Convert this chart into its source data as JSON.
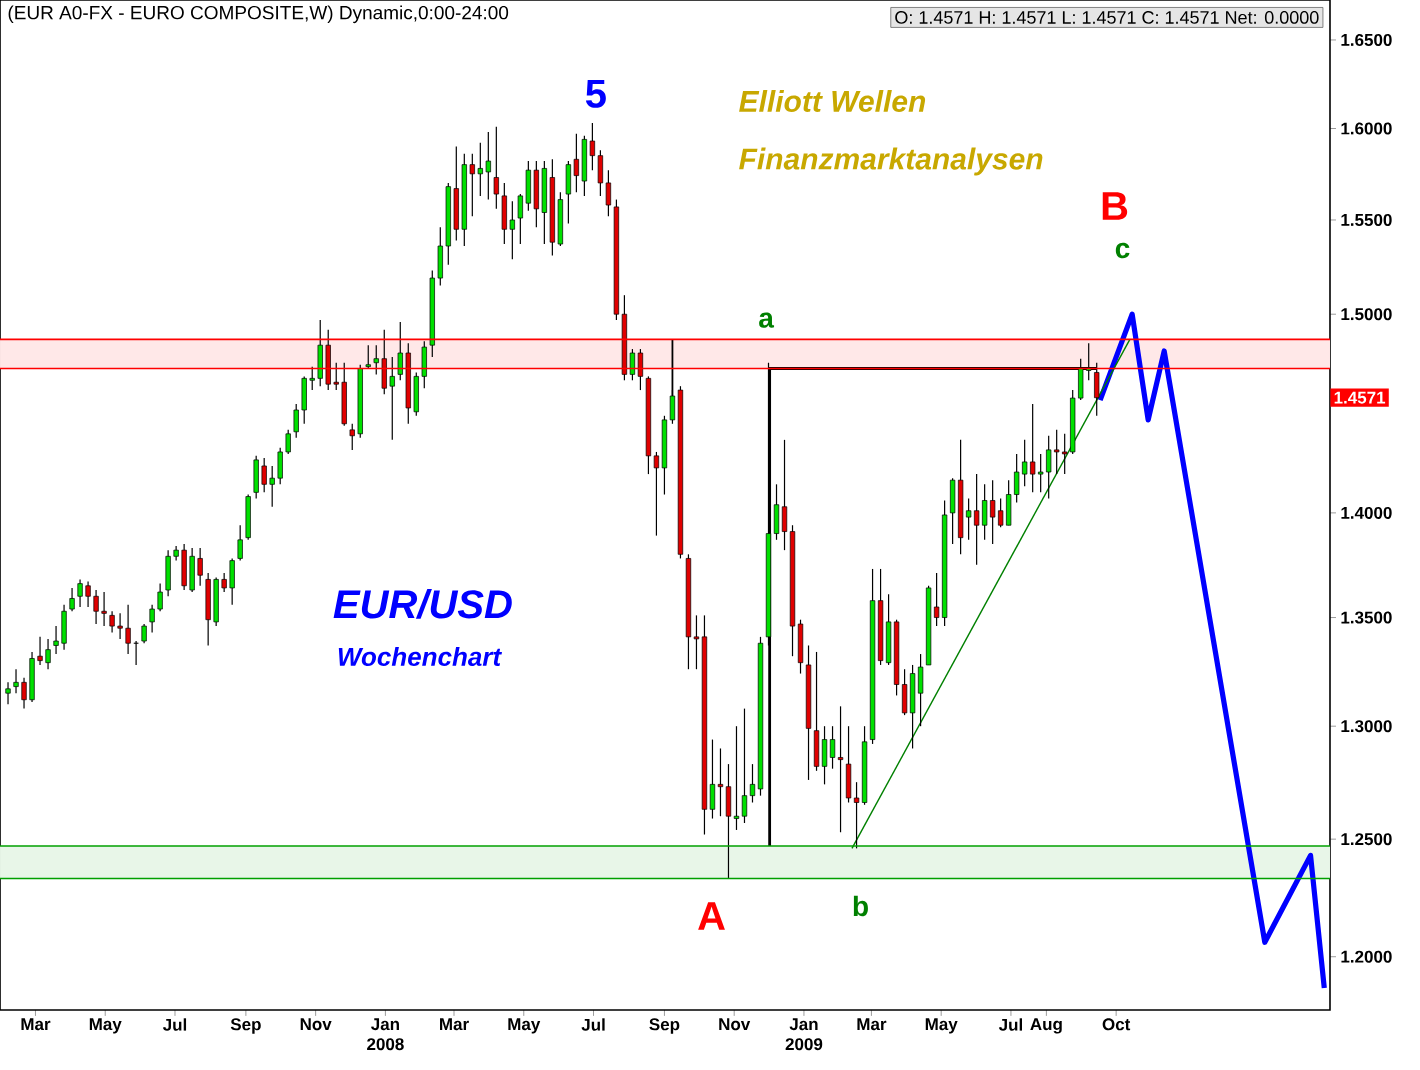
{
  "chart_data": {
    "type": "candlestick",
    "title": "(EUR A0-FX - EURO COMPOSITE,W) Dynamic,0:00-24:00",
    "subtitle": "O: 1.4571   H: 1.4571   L: 1.4571   C: 1.4571   Net: 0.0000",
    "x": [
      "2007-02-05",
      "2007-02-12",
      "2007-02-19",
      "2007-02-26",
      "2007-03-05",
      "2007-03-12",
      "2007-03-19",
      "2007-03-26",
      "2007-04-02",
      "2007-04-09",
      "2007-04-16",
      "2007-04-23",
      "2007-04-30",
      "2007-05-07",
      "2007-05-14",
      "2007-05-21",
      "2007-05-28",
      "2007-06-04",
      "2007-06-11",
      "2007-06-18",
      "2007-06-25",
      "2007-07-02",
      "2007-07-09",
      "2007-07-16",
      "2007-07-23",
      "2007-07-30",
      "2007-08-06",
      "2007-08-13",
      "2007-08-20",
      "2007-08-27",
      "2007-09-03",
      "2007-09-10",
      "2007-09-17",
      "2007-09-24",
      "2007-10-01",
      "2007-10-08",
      "2007-10-15",
      "2007-10-22",
      "2007-10-29",
      "2007-11-05",
      "2007-11-12",
      "2007-11-19",
      "2007-11-26",
      "2007-12-03",
      "2007-12-10",
      "2007-12-17",
      "2007-12-24",
      "2007-12-31",
      "2008-01-07",
      "2008-01-14",
      "2008-01-21",
      "2008-01-28",
      "2008-02-04",
      "2008-02-11",
      "2008-02-18",
      "2008-02-25",
      "2008-03-03",
      "2008-03-10",
      "2008-03-17",
      "2008-03-24",
      "2008-03-31",
      "2008-04-07",
      "2008-04-14",
      "2008-04-21",
      "2008-04-28",
      "2008-05-05",
      "2008-05-12",
      "2008-05-19",
      "2008-05-26",
      "2008-06-02",
      "2008-06-09",
      "2008-06-16",
      "2008-06-23",
      "2008-06-30",
      "2008-07-07",
      "2008-07-14",
      "2008-07-21",
      "2008-07-28",
      "2008-08-04",
      "2008-08-11",
      "2008-08-18",
      "2008-08-25",
      "2008-09-01",
      "2008-09-08",
      "2008-09-15",
      "2008-09-22",
      "2008-09-29",
      "2008-10-06",
      "2008-10-13",
      "2008-10-20",
      "2008-10-27",
      "2008-11-03",
      "2008-11-10",
      "2008-11-17",
      "2008-11-24",
      "2008-12-01",
      "2008-12-08",
      "2008-12-15",
      "2008-12-22",
      "2008-12-29",
      "2009-01-05",
      "2009-01-12",
      "2009-01-19",
      "2009-01-26",
      "2009-02-02",
      "2009-02-09",
      "2009-02-16",
      "2009-02-23",
      "2009-03-02",
      "2009-03-09",
      "2009-03-16",
      "2009-03-23",
      "2009-03-30",
      "2009-04-06",
      "2009-04-13",
      "2009-04-20",
      "2009-04-27",
      "2009-05-04",
      "2009-05-11",
      "2009-05-18",
      "2009-05-25",
      "2009-06-01",
      "2009-06-08",
      "2009-06-15",
      "2009-06-22",
      "2009-06-29",
      "2009-07-06",
      "2009-07-13",
      "2009-07-20",
      "2009-07-27",
      "2009-08-03",
      "2009-08-10",
      "2009-08-17",
      "2009-08-24",
      "2009-08-31",
      "2009-09-07",
      "2009-09-14"
    ],
    "ohlc": [
      [
        1.315,
        1.32,
        1.31,
        1.317
      ],
      [
        1.318,
        1.326,
        1.315,
        1.32
      ],
      [
        1.32,
        1.322,
        1.308,
        1.312
      ],
      [
        1.312,
        1.334,
        1.311,
        1.331
      ],
      [
        1.332,
        1.341,
        1.328,
        1.33
      ],
      [
        1.329,
        1.34,
        1.326,
        1.335
      ],
      [
        1.337,
        1.346,
        1.333,
        1.339
      ],
      [
        1.338,
        1.356,
        1.335,
        1.353
      ],
      [
        1.354,
        1.364,
        1.353,
        1.359
      ],
      [
        1.36,
        1.368,
        1.355,
        1.366
      ],
      [
        1.365,
        1.367,
        1.355,
        1.36
      ],
      [
        1.36,
        1.363,
        1.347,
        1.353
      ],
      [
        1.353,
        1.362,
        1.346,
        1.352
      ],
      [
        1.351,
        1.353,
        1.343,
        1.346
      ],
      [
        1.346,
        1.352,
        1.34,
        1.345
      ],
      [
        1.345,
        1.356,
        1.333,
        1.338
      ],
      [
        1.338,
        1.339,
        1.328,
        1.338
      ],
      [
        1.339,
        1.347,
        1.338,
        1.346
      ],
      [
        1.348,
        1.356,
        1.343,
        1.354
      ],
      [
        1.354,
        1.366,
        1.353,
        1.362
      ],
      [
        1.363,
        1.382,
        1.36,
        1.379
      ],
      [
        1.379,
        1.384,
        1.377,
        1.382
      ],
      [
        1.382,
        1.385,
        1.363,
        1.365
      ],
      [
        1.363,
        1.383,
        1.362,
        1.379
      ],
      [
        1.378,
        1.383,
        1.365,
        1.37
      ],
      [
        1.368,
        1.371,
        1.337,
        1.349
      ],
      [
        1.348,
        1.369,
        1.346,
        1.368
      ],
      [
        1.368,
        1.371,
        1.362,
        1.364
      ],
      [
        1.364,
        1.378,
        1.356,
        1.377
      ],
      [
        1.378,
        1.394,
        1.377,
        1.387
      ],
      [
        1.388,
        1.409,
        1.387,
        1.408
      ],
      [
        1.41,
        1.428,
        1.407,
        1.426
      ],
      [
        1.423,
        1.427,
        1.41,
        1.414
      ],
      [
        1.414,
        1.423,
        1.403,
        1.417
      ],
      [
        1.417,
        1.432,
        1.414,
        1.43
      ],
      [
        1.43,
        1.441,
        1.429,
        1.439
      ],
      [
        1.44,
        1.454,
        1.437,
        1.451
      ],
      [
        1.451,
        1.468,
        1.444,
        1.467
      ],
      [
        1.466,
        1.473,
        1.461,
        1.467
      ],
      [
        1.467,
        1.497,
        1.463,
        1.484
      ],
      [
        1.484,
        1.492,
        1.461,
        1.464
      ],
      [
        1.465,
        1.475,
        1.461,
        1.464
      ],
      [
        1.465,
        1.475,
        1.443,
        1.444
      ],
      [
        1.441,
        1.444,
        1.431,
        1.438
      ],
      [
        1.439,
        1.474,
        1.437,
        1.472
      ],
      [
        1.473,
        1.484,
        1.472,
        1.474
      ],
      [
        1.475,
        1.484,
        1.469,
        1.477
      ],
      [
        1.477,
        1.492,
        1.459,
        1.462
      ],
      [
        1.463,
        1.478,
        1.436,
        1.468
      ],
      [
        1.469,
        1.496,
        1.466,
        1.48
      ],
      [
        1.48,
        1.485,
        1.444,
        1.452
      ],
      [
        1.45,
        1.47,
        1.448,
        1.468
      ],
      [
        1.468,
        1.486,
        1.462,
        1.483
      ],
      [
        1.484,
        1.523,
        1.478,
        1.519
      ],
      [
        1.519,
        1.546,
        1.515,
        1.536
      ],
      [
        1.536,
        1.57,
        1.526,
        1.568
      ],
      [
        1.567,
        1.59,
        1.539,
        1.545
      ],
      [
        1.545,
        1.586,
        1.536,
        1.58
      ],
      [
        1.58,
        1.586,
        1.552,
        1.575
      ],
      [
        1.575,
        1.592,
        1.563,
        1.578
      ],
      [
        1.576,
        1.598,
        1.561,
        1.582
      ],
      [
        1.573,
        1.601,
        1.556,
        1.564
      ],
      [
        1.563,
        1.57,
        1.537,
        1.545
      ],
      [
        1.545,
        1.56,
        1.529,
        1.55
      ],
      [
        1.551,
        1.564,
        1.537,
        1.563
      ],
      [
        1.559,
        1.582,
        1.555,
        1.577
      ],
      [
        1.577,
        1.582,
        1.546,
        1.556
      ],
      [
        1.554,
        1.582,
        1.537,
        1.578
      ],
      [
        1.573,
        1.583,
        1.531,
        1.538
      ],
      [
        1.537,
        1.565,
        1.536,
        1.561
      ],
      [
        1.564,
        1.582,
        1.548,
        1.58
      ],
      [
        1.583,
        1.597,
        1.565,
        1.574
      ],
      [
        1.571,
        1.596,
        1.563,
        1.594
      ],
      [
        1.593,
        1.603,
        1.577,
        1.585
      ],
      [
        1.585,
        1.588,
        1.563,
        1.57
      ],
      [
        1.57,
        1.577,
        1.552,
        1.558
      ],
      [
        1.557,
        1.561,
        1.497,
        1.5
      ],
      [
        1.5,
        1.51,
        1.466,
        1.469
      ],
      [
        1.469,
        1.482,
        1.466,
        1.48
      ],
      [
        1.48,
        1.482,
        1.461,
        1.468
      ],
      [
        1.467,
        1.468,
        1.419,
        1.428
      ],
      [
        1.428,
        1.43,
        1.389,
        1.422
      ],
      [
        1.422,
        1.448,
        1.409,
        1.446
      ],
      [
        1.446,
        1.461,
        1.444,
        1.458
      ],
      [
        1.461,
        1.463,
        1.378,
        1.38
      ],
      [
        1.378,
        1.38,
        1.326,
        1.341
      ],
      [
        1.341,
        1.351,
        1.326,
        1.34
      ],
      [
        1.341,
        1.351,
        1.252,
        1.263
      ],
      [
        1.263,
        1.294,
        1.259,
        1.274
      ],
      [
        1.274,
        1.29,
        1.26,
        1.273
      ],
      [
        1.273,
        1.283,
        1.233,
        1.26
      ],
      [
        1.259,
        1.3,
        1.254,
        1.26
      ],
      [
        1.26,
        1.308,
        1.257,
        1.269
      ],
      [
        1.269,
        1.283,
        1.266,
        1.274
      ],
      [
        1.272,
        1.341,
        1.269,
        1.338
      ],
      [
        1.341,
        1.475,
        1.337,
        1.39
      ],
      [
        1.39,
        1.414,
        1.387,
        1.404
      ],
      [
        1.403,
        1.436,
        1.382,
        1.391
      ],
      [
        1.391,
        1.394,
        1.332,
        1.346
      ],
      [
        1.347,
        1.349,
        1.324,
        1.329
      ],
      [
        1.328,
        1.337,
        1.276,
        1.299
      ],
      [
        1.298,
        1.334,
        1.28,
        1.282
      ],
      [
        1.282,
        1.3,
        1.274,
        1.294
      ],
      [
        1.286,
        1.3,
        1.281,
        1.294
      ],
      [
        1.286,
        1.309,
        1.253,
        1.285
      ],
      [
        1.283,
        1.3,
        1.266,
        1.268
      ],
      [
        1.268,
        1.275,
        1.246,
        1.266
      ],
      [
        1.266,
        1.3,
        1.265,
        1.293
      ],
      [
        1.294,
        1.373,
        1.292,
        1.358
      ],
      [
        1.358,
        1.373,
        1.328,
        1.33
      ],
      [
        1.329,
        1.361,
        1.328,
        1.348
      ],
      [
        1.348,
        1.349,
        1.314,
        1.319
      ],
      [
        1.319,
        1.326,
        1.305,
        1.306
      ],
      [
        1.306,
        1.328,
        1.29,
        1.324
      ],
      [
        1.315,
        1.333,
        1.3,
        1.327
      ],
      [
        1.328,
        1.365,
        1.328,
        1.364
      ],
      [
        1.355,
        1.371,
        1.346,
        1.35
      ],
      [
        1.35,
        1.406,
        1.346,
        1.399
      ],
      [
        1.4,
        1.417,
        1.385,
        1.416
      ],
      [
        1.416,
        1.436,
        1.38,
        1.388
      ],
      [
        1.398,
        1.407,
        1.387,
        1.401
      ],
      [
        1.401,
        1.419,
        1.375,
        1.394
      ],
      [
        1.394,
        1.414,
        1.387,
        1.406
      ],
      [
        1.406,
        1.416,
        1.385,
        1.398
      ],
      [
        1.401,
        1.407,
        1.393,
        1.394
      ],
      [
        1.394,
        1.416,
        1.394,
        1.409
      ],
      [
        1.409,
        1.429,
        1.405,
        1.42
      ],
      [
        1.419,
        1.436,
        1.413,
        1.425
      ],
      [
        1.425,
        1.454,
        1.41,
        1.419
      ],
      [
        1.419,
        1.429,
        1.41,
        1.42
      ],
      [
        1.42,
        1.438,
        1.407,
        1.431
      ],
      [
        1.431,
        1.441,
        1.419,
        1.43
      ],
      [
        1.43,
        1.439,
        1.419,
        1.429
      ],
      [
        1.43,
        1.461,
        1.429,
        1.457
      ],
      [
        1.457,
        1.477,
        1.456,
        1.472
      ],
      [
        1.471,
        1.485,
        1.466,
        1.472
      ],
      [
        1.47,
        1.475,
        1.448,
        1.4571
      ]
    ],
    "series": [
      {
        "type": "line",
        "color": "#0000ff",
        "x": [
          "2009-09-17",
          "2009-10-15",
          "2009-10-29",
          "2009-11-12",
          "2010-02-08",
          "2010-03-20",
          "2010-04-01"
        ],
        "values": [
          1.456,
          1.5,
          1.446,
          1.481,
          1.206,
          1.243,
          1.187
        ]
      },
      {
        "type": "line",
        "color": "#008000",
        "x": [
          "2009-02-12",
          "2009-10-13"
        ],
        "values": [
          1.246,
          1.487
        ]
      },
      {
        "type": "line",
        "color": "#000000",
        "x": [
          "2008-09-08",
          "2008-09-08"
        ],
        "values": [
          1.446,
          1.487
        ]
      },
      {
        "type": "line",
        "color": "#000000",
        "x": [
          "2008-12-02",
          "2008-12-02",
          "2009-09-14"
        ],
        "values": [
          1.247,
          1.472,
          1.472
        ]
      }
    ],
    "bands": [
      {
        "axis": "y",
        "from": 1.472,
        "to": 1.487,
        "color": "#ffe8e8"
      },
      {
        "axis": "y",
        "from": 1.233,
        "to": 1.247,
        "color": "#e8f6e8"
      }
    ],
    "ref_lines": [
      {
        "axis": "y",
        "value": 1.487,
        "color": "#ff0000"
      },
      {
        "axis": "y",
        "value": 1.472,
        "color": "#ff0000"
      },
      {
        "axis": "y",
        "value": 1.247,
        "color": "#00a000"
      },
      {
        "axis": "y",
        "value": 1.233,
        "color": "#00a000"
      }
    ],
    "annotations": [
      "Elliott Wellen",
      "Finanzmarktanalysen",
      "EUR/USD",
      "Wochenchart",
      "5",
      "a",
      "b",
      "c",
      "A",
      "B",
      "1.4571"
    ],
    "xlim": [
      "2007-01-29",
      "2010-04-06"
    ],
    "ylim": [
      1.178,
      1.673
    ],
    "log": "y",
    "xticks": [
      {
        "value": "2007-03-01",
        "label": "Mar"
      },
      {
        "value": "2007-05-01",
        "label": "May"
      },
      {
        "value": "2007-07-01",
        "label": "Jul"
      },
      {
        "value": "2007-09-01",
        "label": "Sep"
      },
      {
        "value": "2007-11-01",
        "label": "Nov"
      },
      {
        "value": "2008-01-01",
        "label": "Jan 2008"
      },
      {
        "value": "2008-03-01",
        "label": "Mar"
      },
      {
        "value": "2008-05-01",
        "label": "May"
      },
      {
        "value": "2008-07-01",
        "label": "Jul"
      },
      {
        "value": "2008-09-01",
        "label": "Sep"
      },
      {
        "value": "2008-11-01",
        "label": "Nov"
      },
      {
        "value": "2009-01-01",
        "label": "Jan 2009"
      },
      {
        "value": "2009-03-01",
        "label": "Mar"
      },
      {
        "value": "2009-05-01",
        "label": "May"
      },
      {
        "value": "2009-07-01",
        "label": "Jul"
      },
      {
        "value": "2009-08-01",
        "label": "Aug"
      },
      {
        "value": "2009-10-01",
        "label": "Oct"
      }
    ],
    "yticks": [
      {
        "value": 1.2,
        "label": "1.2000"
      },
      {
        "value": 1.25,
        "label": "1.2500"
      },
      {
        "value": 1.3,
        "label": "1.3000"
      },
      {
        "value": 1.35,
        "label": "1.3500"
      },
      {
        "value": 1.4,
        "label": "1.4000"
      },
      {
        "value": 1.5,
        "label": "1.5000"
      },
      {
        "value": 1.55,
        "label": "1.5500"
      },
      {
        "value": 1.6,
        "label": "1.6000"
      },
      {
        "value": 1.65,
        "label": "1.6500"
      }
    ]
  }
}
